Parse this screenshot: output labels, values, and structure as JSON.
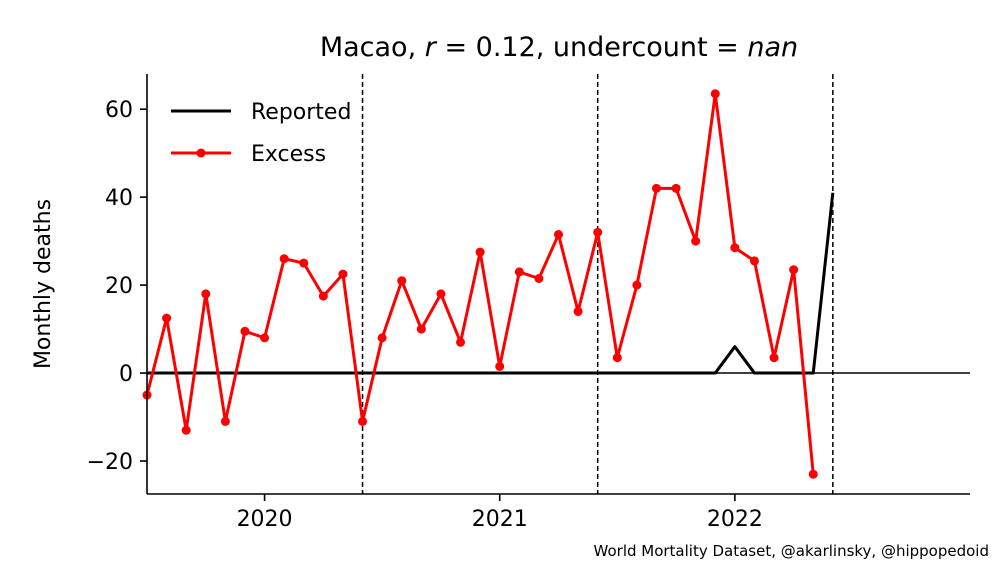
{
  "chart_data": {
    "type": "line",
    "title_parts": {
      "prefix": "Macao, ",
      "r_symbol": "r",
      "r_value": " = 0.12, undercount = ",
      "undercount_value": "nan"
    },
    "ylabel": "Monthly deaths",
    "xlabel": "",
    "ylim": [
      -27.5,
      68
    ],
    "xlim": [
      "2019-07",
      "2022-12"
    ],
    "yticks": [
      -20,
      0,
      20,
      40,
      60
    ],
    "ytick_labels": [
      "−20",
      "0",
      "20",
      "40",
      "60"
    ],
    "xticks": [
      "2020-01",
      "2021-01",
      "2022-01"
    ],
    "xtick_labels": [
      "2020",
      "2021",
      "2022"
    ],
    "vlines": [
      "2020-06",
      "2021-06",
      "2022-06"
    ],
    "legend": {
      "placement": "top-left",
      "entries": [
        "Reported",
        "Excess"
      ]
    },
    "colors": {
      "reported": "#000000",
      "excess": "#ff0000",
      "zero_line": "#000000",
      "vlines": "#000000"
    },
    "series": [
      {
        "name": "Reported",
        "x": [
          "2019-07",
          "2019-08",
          "2019-09",
          "2019-10",
          "2019-11",
          "2019-12",
          "2020-01",
          "2020-02",
          "2020-03",
          "2020-04",
          "2020-05",
          "2020-06",
          "2020-07",
          "2020-08",
          "2020-09",
          "2020-10",
          "2020-11",
          "2020-12",
          "2021-01",
          "2021-02",
          "2021-03",
          "2021-04",
          "2021-05",
          "2021-06",
          "2021-07",
          "2021-08",
          "2021-09",
          "2021-10",
          "2021-11",
          "2021-12",
          "2022-01",
          "2022-02",
          "2022-03",
          "2022-04",
          "2022-05",
          "2022-06"
        ],
        "values": [
          0,
          0,
          0,
          0,
          0,
          0,
          0,
          0,
          0,
          0,
          0,
          0,
          0,
          0,
          0,
          0,
          0,
          0,
          0,
          0,
          0,
          0,
          0,
          0,
          0,
          0,
          0,
          0,
          0,
          0,
          6,
          0,
          0,
          0,
          0,
          41
        ]
      },
      {
        "name": "Excess",
        "x": [
          "2019-07",
          "2019-08",
          "2019-09",
          "2019-10",
          "2019-11",
          "2019-12",
          "2020-01",
          "2020-02",
          "2020-03",
          "2020-04",
          "2020-05",
          "2020-06",
          "2020-07",
          "2020-08",
          "2020-09",
          "2020-10",
          "2020-11",
          "2020-12",
          "2021-01",
          "2021-02",
          "2021-03",
          "2021-04",
          "2021-05",
          "2021-06",
          "2021-07",
          "2021-08",
          "2021-09",
          "2021-10",
          "2021-11",
          "2021-12",
          "2022-01",
          "2022-02",
          "2022-03",
          "2022-04",
          "2022-05"
        ],
        "values": [
          -5,
          12.5,
          -13,
          18,
          -11,
          9.5,
          8,
          26,
          25,
          17.5,
          22.5,
          -11,
          8,
          21,
          10,
          18,
          7,
          27.5,
          1.5,
          23,
          21.5,
          31.5,
          14,
          32,
          3.5,
          20,
          42,
          42,
          30,
          63.5,
          28.5,
          25.5,
          3.5,
          23.5,
          -23
        ]
      }
    ]
  },
  "credit": "World Mortality Dataset, @akarlinsky, @hippopedoid"
}
